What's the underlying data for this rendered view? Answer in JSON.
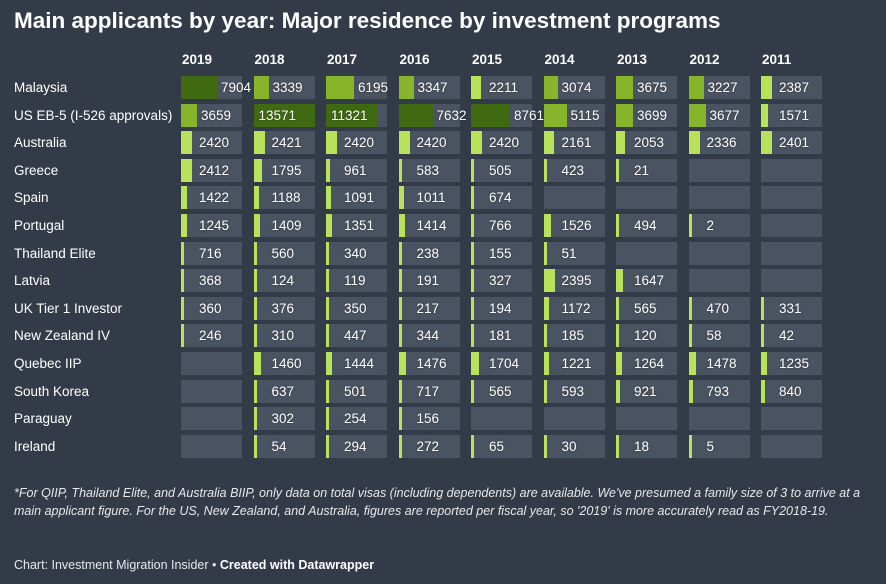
{
  "title": "Main applicants by year: Major residence by investment programs",
  "footnote": "*For QIIP, Thailand Elite, and Australia BIIP, only data on total visas (including dependents) are available. We've presumed a family size of 3 to arrive at a main applicant figure. For the US, New Zealand, and Australia, figures are reported per fiscal year, so '2019' is more accurately read as FY2018-19.",
  "source_text": "Chart: Investment Migration Insider",
  "source_sep": " • ",
  "created_with": "Created with Datawrapper",
  "colors": {
    "background": "#333b48",
    "cell": "#4a5361",
    "light_green": "#b7e25a",
    "mid_green": "#86b42a",
    "dark_green": "#3f6a12"
  },
  "chart_data": {
    "type": "table",
    "columns": [
      "2019",
      "2018",
      "2017",
      "2016",
      "2015",
      "2014",
      "2013",
      "2012",
      "2011"
    ],
    "rows": [
      {
        "label": "Malaysia",
        "values": [
          7904,
          3339,
          6195,
          3347,
          2211,
          3074,
          3675,
          3227,
          2387
        ]
      },
      {
        "label": "US EB-5 (I-526 approvals)",
        "values": [
          3659,
          13571,
          11321,
          7632,
          8761,
          5115,
          3699,
          3677,
          1571
        ]
      },
      {
        "label": "Australia",
        "values": [
          2420,
          2421,
          2420,
          2420,
          2420,
          2161,
          2053,
          2336,
          2401
        ]
      },
      {
        "label": "Greece",
        "values": [
          2412,
          1795,
          961,
          583,
          505,
          423,
          21,
          null,
          null
        ]
      },
      {
        "label": "Spain",
        "values": [
          1422,
          1188,
          1091,
          1011,
          674,
          null,
          null,
          null,
          null
        ]
      },
      {
        "label": "Portugal",
        "values": [
          1245,
          1409,
          1351,
          1414,
          766,
          1526,
          494,
          2,
          null
        ]
      },
      {
        "label": "Thailand Elite",
        "values": [
          716,
          560,
          340,
          238,
          155,
          51,
          null,
          null,
          null
        ]
      },
      {
        "label": "Latvia",
        "values": [
          368,
          124,
          119,
          191,
          327,
          2395,
          1647,
          null,
          null
        ]
      },
      {
        "label": "UK Tier 1 Investor",
        "values": [
          360,
          376,
          350,
          217,
          194,
          1172,
          565,
          470,
          331
        ]
      },
      {
        "label": "New Zealand IV",
        "values": [
          246,
          310,
          447,
          344,
          181,
          185,
          120,
          58,
          42
        ]
      },
      {
        "label": "Quebec IIP",
        "values": [
          null,
          1460,
          1444,
          1476,
          1704,
          1221,
          1264,
          1478,
          1235
        ]
      },
      {
        "label": "South Korea",
        "values": [
          null,
          637,
          501,
          717,
          565,
          593,
          921,
          793,
          840
        ]
      },
      {
        "label": "Paraguay",
        "values": [
          null,
          302,
          254,
          156,
          null,
          null,
          null,
          null,
          null
        ]
      },
      {
        "label": "Ireland",
        "values": [
          null,
          54,
          294,
          272,
          65,
          30,
          18,
          5,
          null
        ]
      }
    ]
  }
}
